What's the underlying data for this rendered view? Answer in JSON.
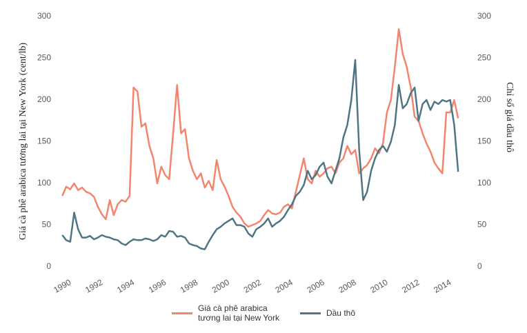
{
  "chart_data": {
    "type": "line",
    "y_label": "Giá cà phê arabica tương lai tại New York (cent/lb)",
    "y2_label": "Chỉ số giá dầu thô",
    "x": [
      1990.0,
      1990.25,
      1990.5,
      1990.75,
      1991.0,
      1991.25,
      1991.5,
      1991.75,
      1992.0,
      1992.25,
      1992.5,
      1992.75,
      1993.0,
      1993.25,
      1993.5,
      1993.75,
      1994.0,
      1994.25,
      1994.5,
      1994.75,
      1995.0,
      1995.25,
      1995.5,
      1995.75,
      1996.0,
      1996.25,
      1996.5,
      1996.75,
      1997.0,
      1997.25,
      1997.5,
      1997.75,
      1998.0,
      1998.25,
      1998.5,
      1998.75,
      1999.0,
      1999.25,
      1999.5,
      1999.75,
      2000.0,
      2000.25,
      2000.5,
      2000.75,
      2001.0,
      2001.25,
      2001.5,
      2001.75,
      2002.0,
      2002.25,
      2002.5,
      2002.75,
      2003.0,
      2003.25,
      2003.5,
      2003.75,
      2004.0,
      2004.25,
      2004.5,
      2004.75,
      2005.0,
      2005.25,
      2005.5,
      2005.75,
      2006.0,
      2006.25,
      2006.5,
      2006.75,
      2007.0,
      2007.25,
      2007.5,
      2007.75,
      2008.0,
      2008.25,
      2008.5,
      2008.75,
      2009.0,
      2009.25,
      2009.5,
      2009.75,
      2010.0,
      2010.25,
      2010.5,
      2010.75,
      2011.0,
      2011.25,
      2011.5,
      2011.75,
      2012.0,
      2012.25,
      2012.5,
      2012.75,
      2013.0,
      2013.25,
      2013.5,
      2013.75,
      2014.0,
      2014.25,
      2014.5,
      2014.75,
      2015.0
    ],
    "series": [
      {
        "name": "Giá cà phê arabica\ntương lai tại New York",
        "color": "#f4846c",
        "values": [
          85,
          96,
          93,
          100,
          92,
          95,
          90,
          88,
          84,
          72,
          63,
          57,
          80,
          62,
          75,
          80,
          78,
          85,
          215,
          210,
          168,
          172,
          145,
          130,
          100,
          120,
          110,
          105,
          160,
          218,
          160,
          165,
          130,
          115,
          105,
          112,
          95,
          103,
          92,
          128,
          105,
          96,
          85,
          72,
          65,
          60,
          52,
          48,
          50,
          52,
          55,
          62,
          68,
          64,
          63,
          65,
          72,
          75,
          70,
          90,
          110,
          130,
          105,
          100,
          115,
          108,
          112,
          118,
          120,
          112,
          125,
          130,
          145,
          135,
          140,
          112,
          118,
          122,
          130,
          142,
          136,
          148,
          185,
          200,
          240,
          285,
          255,
          240,
          215,
          180,
          175,
          160,
          148,
          138,
          125,
          118,
          112,
          185,
          185,
          200,
          178
        ]
      },
      {
        "name": "Dầu thô",
        "color": "#4f7585",
        "axis": "y2",
        "values": [
          38,
          32,
          30,
          65,
          45,
          35,
          35,
          37,
          33,
          35,
          38,
          36,
          35,
          33,
          32,
          28,
          26,
          30,
          33,
          32,
          32,
          34,
          33,
          31,
          33,
          38,
          36,
          43,
          42,
          36,
          37,
          35,
          28,
          26,
          25,
          22,
          21,
          30,
          38,
          45,
          48,
          52,
          55,
          58,
          50,
          50,
          48,
          40,
          36,
          45,
          48,
          52,
          58,
          48,
          52,
          55,
          60,
          68,
          75,
          85,
          90,
          98,
          115,
          105,
          110,
          120,
          125,
          108,
          100,
          115,
          130,
          155,
          170,
          200,
          248,
          140,
          80,
          90,
          115,
          130,
          140,
          145,
          138,
          150,
          170,
          218,
          190,
          195,
          208,
          215,
          175,
          195,
          200,
          188,
          198,
          195,
          200,
          198,
          200,
          170,
          114
        ]
      }
    ],
    "xlim": [
      1989.9,
      2015.6
    ],
    "xticks": [
      1990,
      1992,
      1994,
      1996,
      1998,
      2000,
      2002,
      2004,
      2006,
      2008,
      2010,
      2012,
      2014
    ],
    "ylim": [
      0,
      300
    ],
    "yticks": [
      0,
      50,
      100,
      150,
      200,
      250,
      300
    ],
    "y2lim": [
      0,
      300
    ],
    "y2ticks": [
      0,
      50,
      100,
      150,
      200,
      250,
      300
    ],
    "grid": false,
    "legend": "bottom"
  }
}
